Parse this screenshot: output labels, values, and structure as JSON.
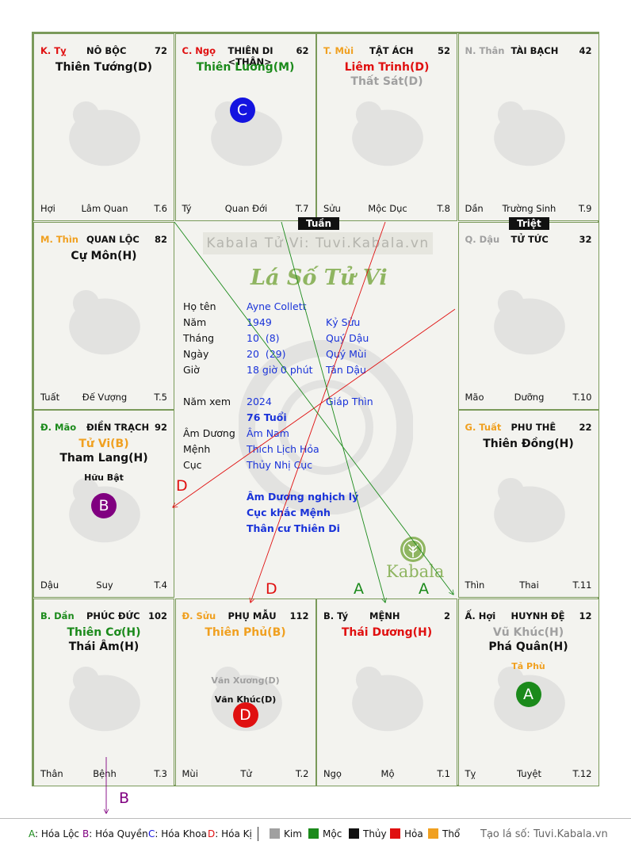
{
  "watermark": "Kabala Tử Vi: Tuvi.Kabala.vn",
  "title_script": "Lá Số Tử Vi",
  "tags": {
    "tuan": "Tuần",
    "triet": "Triệt"
  },
  "info": {
    "labels": [
      "Họ tên",
      "Năm",
      "Tháng",
      "Ngày",
      "Giờ",
      "Năm xem",
      "Âm Dương",
      "Mệnh",
      "Cục"
    ],
    "ho_ten": "Ayne Collett",
    "nam": "1949",
    "nam_can": "Kỷ Sửu",
    "thang": "10  (8)",
    "thang_can": "Quý Dậu",
    "ngay": "20  (29)",
    "ngay_can": "Quý Mùi",
    "gio": "18 giờ 0 phút",
    "gio_can": "Tân Dậu",
    "nam_xem": "2024",
    "nam_xem_can": "Giáp Thìn",
    "tuoi": "76 Tuổi",
    "am_duong": "Âm Nam",
    "menh": "Thích Lịch Hỏa",
    "cuc": "Thủy Nhị Cục",
    "notes": [
      "Âm Dương nghịch lý",
      "Cục khắc Mệnh",
      "Thân cư Thiên Di"
    ]
  },
  "logo": "Kabala",
  "cells": [
    {
      "can": "K. Tỵ",
      "can_color": "#e01010",
      "name": "NÔ BỘC",
      "num": "72",
      "stars": [
        {
          "t": "Thiên Tướng(D)",
          "c": "#111"
        }
      ],
      "small": [],
      "l": "Hợi",
      "m": "Lâm Quan",
      "r": "T.6"
    },
    {
      "can": "C. Ngọ",
      "can_color": "#e01010",
      "name": "THIÊN DI <THÂN>",
      "num": "62",
      "stars": [
        {
          "t": "Thiên Lương(M)",
          "c": "#1b8a1b"
        }
      ],
      "small": [],
      "l": "Tý",
      "m": "Quan Đới",
      "r": "T.7",
      "badge": "C"
    },
    {
      "can": "T. Mùi",
      "can_color": "#f0a020",
      "name": "TẬT ÁCH",
      "num": "52",
      "stars": [
        {
          "t": "Liêm Trinh(D)",
          "c": "#e01010"
        },
        {
          "t": "Thất Sát(D)",
          "c": "#a0a0a0"
        }
      ],
      "small": [],
      "l": "Sửu",
      "m": "Mộc Dục",
      "r": "T.8"
    },
    {
      "can": "N. Thân",
      "can_color": "#a0a0a0",
      "name": "TÀI BẠCH",
      "num": "42",
      "stars": [],
      "small": [],
      "l": "Dần",
      "m": "Trường Sinh",
      "r": "T.9"
    },
    {
      "can": "M. Thìn",
      "can_color": "#f0a020",
      "name": "QUAN LỘC",
      "num": "82",
      "stars": [
        {
          "t": "Cự Môn(H)",
          "c": "#111"
        }
      ],
      "small": [],
      "l": "Tuất",
      "m": "Đế Vượng",
      "r": "T.5"
    },
    {
      "can": "Q. Dậu",
      "can_color": "#a0a0a0",
      "name": "TỬ TỨC",
      "num": "32",
      "stars": [],
      "small": [],
      "l": "Mão",
      "m": "Dưỡng",
      "r": "T.10"
    },
    {
      "can": "Đ. Mão",
      "can_color": "#1b8a1b",
      "name": "ĐIỀN TRẠCH",
      "num": "92",
      "stars": [
        {
          "t": "Tử Vi(B)",
          "c": "#f0a020"
        },
        {
          "t": "Tham Lang(H)",
          "c": "#111"
        }
      ],
      "small": [
        {
          "t": "Hữu Bật",
          "c": "#111"
        }
      ],
      "l": "Dậu",
      "m": "Suy",
      "r": "T.4",
      "badge": "B"
    },
    {
      "can": "G. Tuất",
      "can_color": "#f0a020",
      "name": "PHU THÊ",
      "num": "22",
      "stars": [
        {
          "t": "Thiên Đồng(H)",
          "c": "#111"
        }
      ],
      "small": [],
      "l": "Thìn",
      "m": "Thai",
      "r": "T.11"
    },
    {
      "can": "B. Dần",
      "can_color": "#1b8a1b",
      "name": "PHÚC ĐỨC",
      "num": "102",
      "stars": [
        {
          "t": "Thiên Cơ(H)",
          "c": "#1b8a1b"
        },
        {
          "t": "Thái Âm(H)",
          "c": "#111"
        }
      ],
      "small": [],
      "l": "Thân",
      "m": "Bệnh",
      "r": "T.3"
    },
    {
      "can": "Đ. Sửu",
      "can_color": "#f0a020",
      "name": "PHỤ MẪU",
      "num": "112",
      "stars": [
        {
          "t": "Thiên Phủ(B)",
          "c": "#f0a020"
        }
      ],
      "small": [
        {
          "t": "Văn Xương(D)",
          "c": "#a0a0a0"
        },
        {
          "t": "Văn Khúc(D)",
          "c": "#111"
        }
      ],
      "l": "Mùi",
      "m": "Tử",
      "r": "T.2",
      "badge": "D"
    },
    {
      "can": "B. Tý",
      "can_color": "#111",
      "name": "MỆNH",
      "num": "2",
      "stars": [
        {
          "t": "Thái Dương(H)",
          "c": "#e01010"
        }
      ],
      "small": [],
      "l": "Ngọ",
      "m": "Mộ",
      "r": "T.1"
    },
    {
      "can": "Ấ. Hợi",
      "can_color": "#111",
      "name": "HUYNH ĐỆ",
      "num": "12",
      "stars": [
        {
          "t": "Vũ Khúc(H)",
          "c": "#a0a0a0"
        },
        {
          "t": "Phá Quân(H)",
          "c": "#111"
        }
      ],
      "small": [
        {
          "t": "Tả Phù",
          "c": "#f0a020"
        }
      ],
      "l": "Tỵ",
      "m": "Tuyệt",
      "r": "T.12",
      "badge": "A"
    }
  ],
  "badge_colors": {
    "A": "#1b8a1b",
    "B": "#800080",
    "C": "#1414e0",
    "D": "#e01010"
  },
  "arrow_letters": {
    "A": "A",
    "B": "B",
    "D": "D"
  },
  "legend": {
    "hoa": [
      {
        "k": "A",
        "t": "Hóa Lộc",
        "c": "#1b8a1b"
      },
      {
        "k": "B",
        "t": "Hóa Quyền",
        "c": "#800080"
      },
      {
        "k": "C",
        "t": "Hóa Khoa",
        "c": "#1414e0"
      },
      {
        "k": "D",
        "t": "Hóa Kị",
        "c": "#e01010"
      }
    ],
    "elements": [
      {
        "t": "Kim",
        "c": "#a0a0a0"
      },
      {
        "t": "Mộc",
        "c": "#1b8a1b"
      },
      {
        "t": "Thủy",
        "c": "#111111"
      },
      {
        "t": "Hỏa",
        "c": "#e01010"
      },
      {
        "t": "Thổ",
        "c": "#f0a020"
      }
    ],
    "site": "Tạo lá số: Tuvi.Kabala.vn"
  }
}
